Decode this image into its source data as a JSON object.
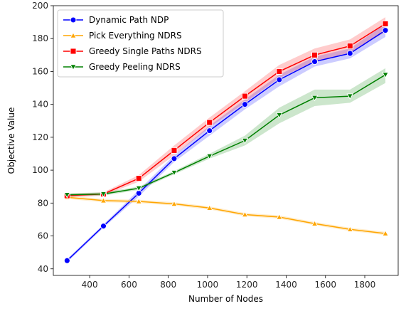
{
  "chart_data": {
    "type": "line",
    "title": "",
    "xlabel": "Number of Nodes",
    "ylabel": "Objective Value",
    "xlim": [
      215,
      1970
    ],
    "ylim": [
      36,
      200
    ],
    "xticks": [
      400,
      600,
      800,
      1000,
      1200,
      1400,
      1600,
      1800
    ],
    "yticks": [
      40,
      60,
      80,
      100,
      120,
      140,
      160,
      180,
      200
    ],
    "grid": false,
    "legend_position": "top-left",
    "x": [
      285,
      470,
      650,
      830,
      1010,
      1190,
      1365,
      1545,
      1725,
      1905
    ],
    "series": [
      {
        "name": "Dynamic Path NDP",
        "color": "#0000ff",
        "marker": "circle",
        "values": [
          45,
          66,
          86,
          107,
          124,
          140,
          155,
          166,
          171,
          185
        ],
        "band_low": [
          44,
          65,
          84,
          105,
          121,
          137,
          151,
          163,
          168,
          181
        ],
        "band_high": [
          46,
          67,
          88,
          109,
          127,
          143,
          158,
          169,
          174,
          189
        ]
      },
      {
        "name": "Pick Everything NDRS",
        "color": "#ffa500",
        "marker": "triangle-up",
        "values": [
          83.5,
          81.5,
          81,
          79.5,
          77,
          73,
          71.5,
          67.5,
          64,
          61.5
        ],
        "band_low": [
          82.5,
          80.5,
          80,
          78.5,
          76,
          72,
          70.5,
          66.5,
          63,
          60.5
        ],
        "band_high": [
          84.5,
          82.5,
          82,
          80.5,
          78,
          74,
          72.5,
          68.5,
          65,
          62.5
        ]
      },
      {
        "name": "Greedy Single Paths NDRS",
        "color": "#ff0000",
        "marker": "square",
        "values": [
          84.5,
          85.5,
          95,
          112,
          129,
          145,
          160,
          170,
          175.5,
          189
        ],
        "band_low": [
          83.5,
          84.5,
          93,
          109,
          126,
          141,
          156,
          166,
          171.5,
          184
        ],
        "band_high": [
          85.5,
          86.5,
          97,
          115,
          132,
          148,
          164,
          174,
          179.5,
          193
        ]
      },
      {
        "name": "Greedy Peeling NDRS",
        "color": "#008000",
        "marker": "triangle-down",
        "values": [
          85,
          85.5,
          89,
          98.5,
          108.5,
          118,
          133.5,
          144,
          145,
          158
        ],
        "band_low": [
          84,
          84.5,
          88,
          97.5,
          107,
          115,
          128.5,
          139,
          141,
          153
        ],
        "band_high": [
          86,
          86.5,
          90,
          99.5,
          110,
          121,
          138,
          149,
          149,
          162
        ]
      }
    ]
  }
}
